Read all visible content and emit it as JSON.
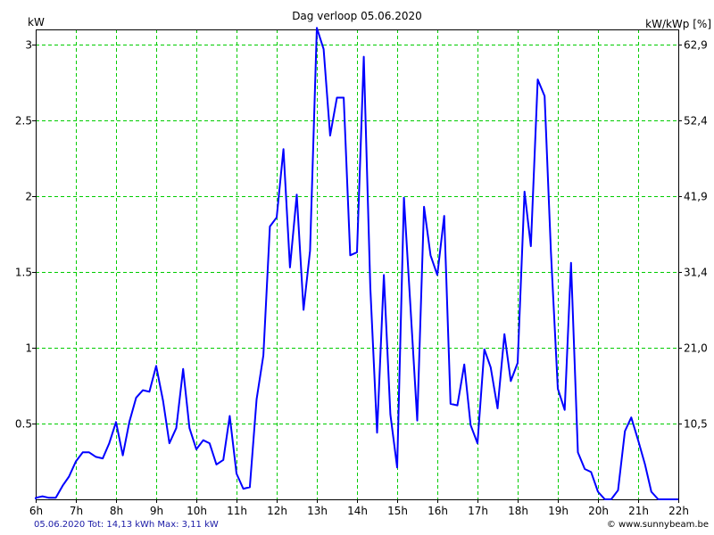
{
  "chart_data": {
    "type": "line",
    "title": "Dag  verloop 05.06.2020",
    "ylabel_left": "kW",
    "ylabel_right": "kW/kWp [%]",
    "x_ticks": [
      "6h",
      "7h",
      "8h",
      "9h",
      "10h",
      "11h",
      "12h",
      "13h",
      "14h",
      "15h",
      "16h",
      "17h",
      "18h",
      "19h",
      "20h",
      "21h",
      "22h"
    ],
    "y_ticks_left": [
      "0.5",
      "1",
      "1.5",
      "2",
      "2.5",
      "3"
    ],
    "y_ticks_right": [
      "10,5",
      "21,0",
      "31,4",
      "41,9",
      "52,4",
      "62,9"
    ],
    "xlim": [
      6,
      22
    ],
    "ylim": [
      0,
      3.1
    ],
    "grid": true,
    "series": [
      {
        "color": "#0000ff",
        "x": [
          5.8,
          6.0,
          6.17,
          6.33,
          6.5,
          6.67,
          6.83,
          7.0,
          7.17,
          7.33,
          7.5,
          7.67,
          7.83,
          8.0,
          8.17,
          8.33,
          8.5,
          8.67,
          8.83,
          9.0,
          9.17,
          9.33,
          9.5,
          9.67,
          9.83,
          10.0,
          10.17,
          10.33,
          10.5,
          10.67,
          10.83,
          11.0,
          11.17,
          11.33,
          11.5,
          11.67,
          11.83,
          12.0,
          12.17,
          12.33,
          12.5,
          12.67,
          12.83,
          13.0,
          13.17,
          13.33,
          13.5,
          13.67,
          13.83,
          14.0,
          14.17,
          14.33,
          14.5,
          14.67,
          14.83,
          15.0,
          15.17,
          15.33,
          15.5,
          15.67,
          15.83,
          16.0,
          16.17,
          16.33,
          16.5,
          16.67,
          16.83,
          17.0,
          17.17,
          17.33,
          17.5,
          17.67,
          17.83,
          18.0,
          18.17,
          18.33,
          18.5,
          18.67,
          18.83,
          19.0,
          19.17,
          19.33,
          19.5,
          19.67,
          19.83,
          20.0,
          20.17,
          20.33,
          20.5,
          20.67,
          20.83,
          21.0,
          21.17,
          21.33,
          21.5,
          21.67,
          21.83,
          22.0
        ],
        "y": [
          0,
          0.01,
          0.02,
          0.01,
          0.01,
          0.09,
          0.15,
          0.25,
          0.31,
          0.31,
          0.28,
          0.27,
          0.37,
          0.51,
          0.29,
          0.51,
          0.67,
          0.72,
          0.71,
          0.88,
          0.65,
          0.37,
          0.47,
          0.86,
          0.47,
          0.33,
          0.39,
          0.37,
          0.23,
          0.26,
          0.55,
          0.17,
          0.07,
          0.08,
          0.66,
          0.95,
          1.8,
          1.86,
          2.31,
          1.53,
          2.01,
          1.25,
          1.64,
          3.11,
          2.97,
          2.4,
          2.65,
          2.65,
          1.61,
          1.63,
          2.92,
          1.4,
          0.44,
          1.48,
          0.56,
          0.21,
          1.99,
          1.27,
          0.52,
          1.93,
          1.61,
          1.48,
          1.87,
          0.63,
          0.62,
          0.89,
          0.49,
          0.37,
          0.99,
          0.87,
          0.6,
          1.09,
          0.78,
          0.9,
          2.03,
          1.67,
          2.77,
          2.66,
          1.63,
          0.73,
          0.59,
          1.56,
          0.31,
          0.2,
          0.18,
          0.05,
          0,
          0,
          0.06,
          0.45,
          0.54,
          0.39,
          0.23,
          0.05,
          0,
          0,
          0,
          0
        ]
      }
    ]
  },
  "footer": {
    "summary": "05.06.2020 Tot: 14,13 kWh Max: 3,11 kW",
    "website": "© www.sunnybeam.be"
  }
}
